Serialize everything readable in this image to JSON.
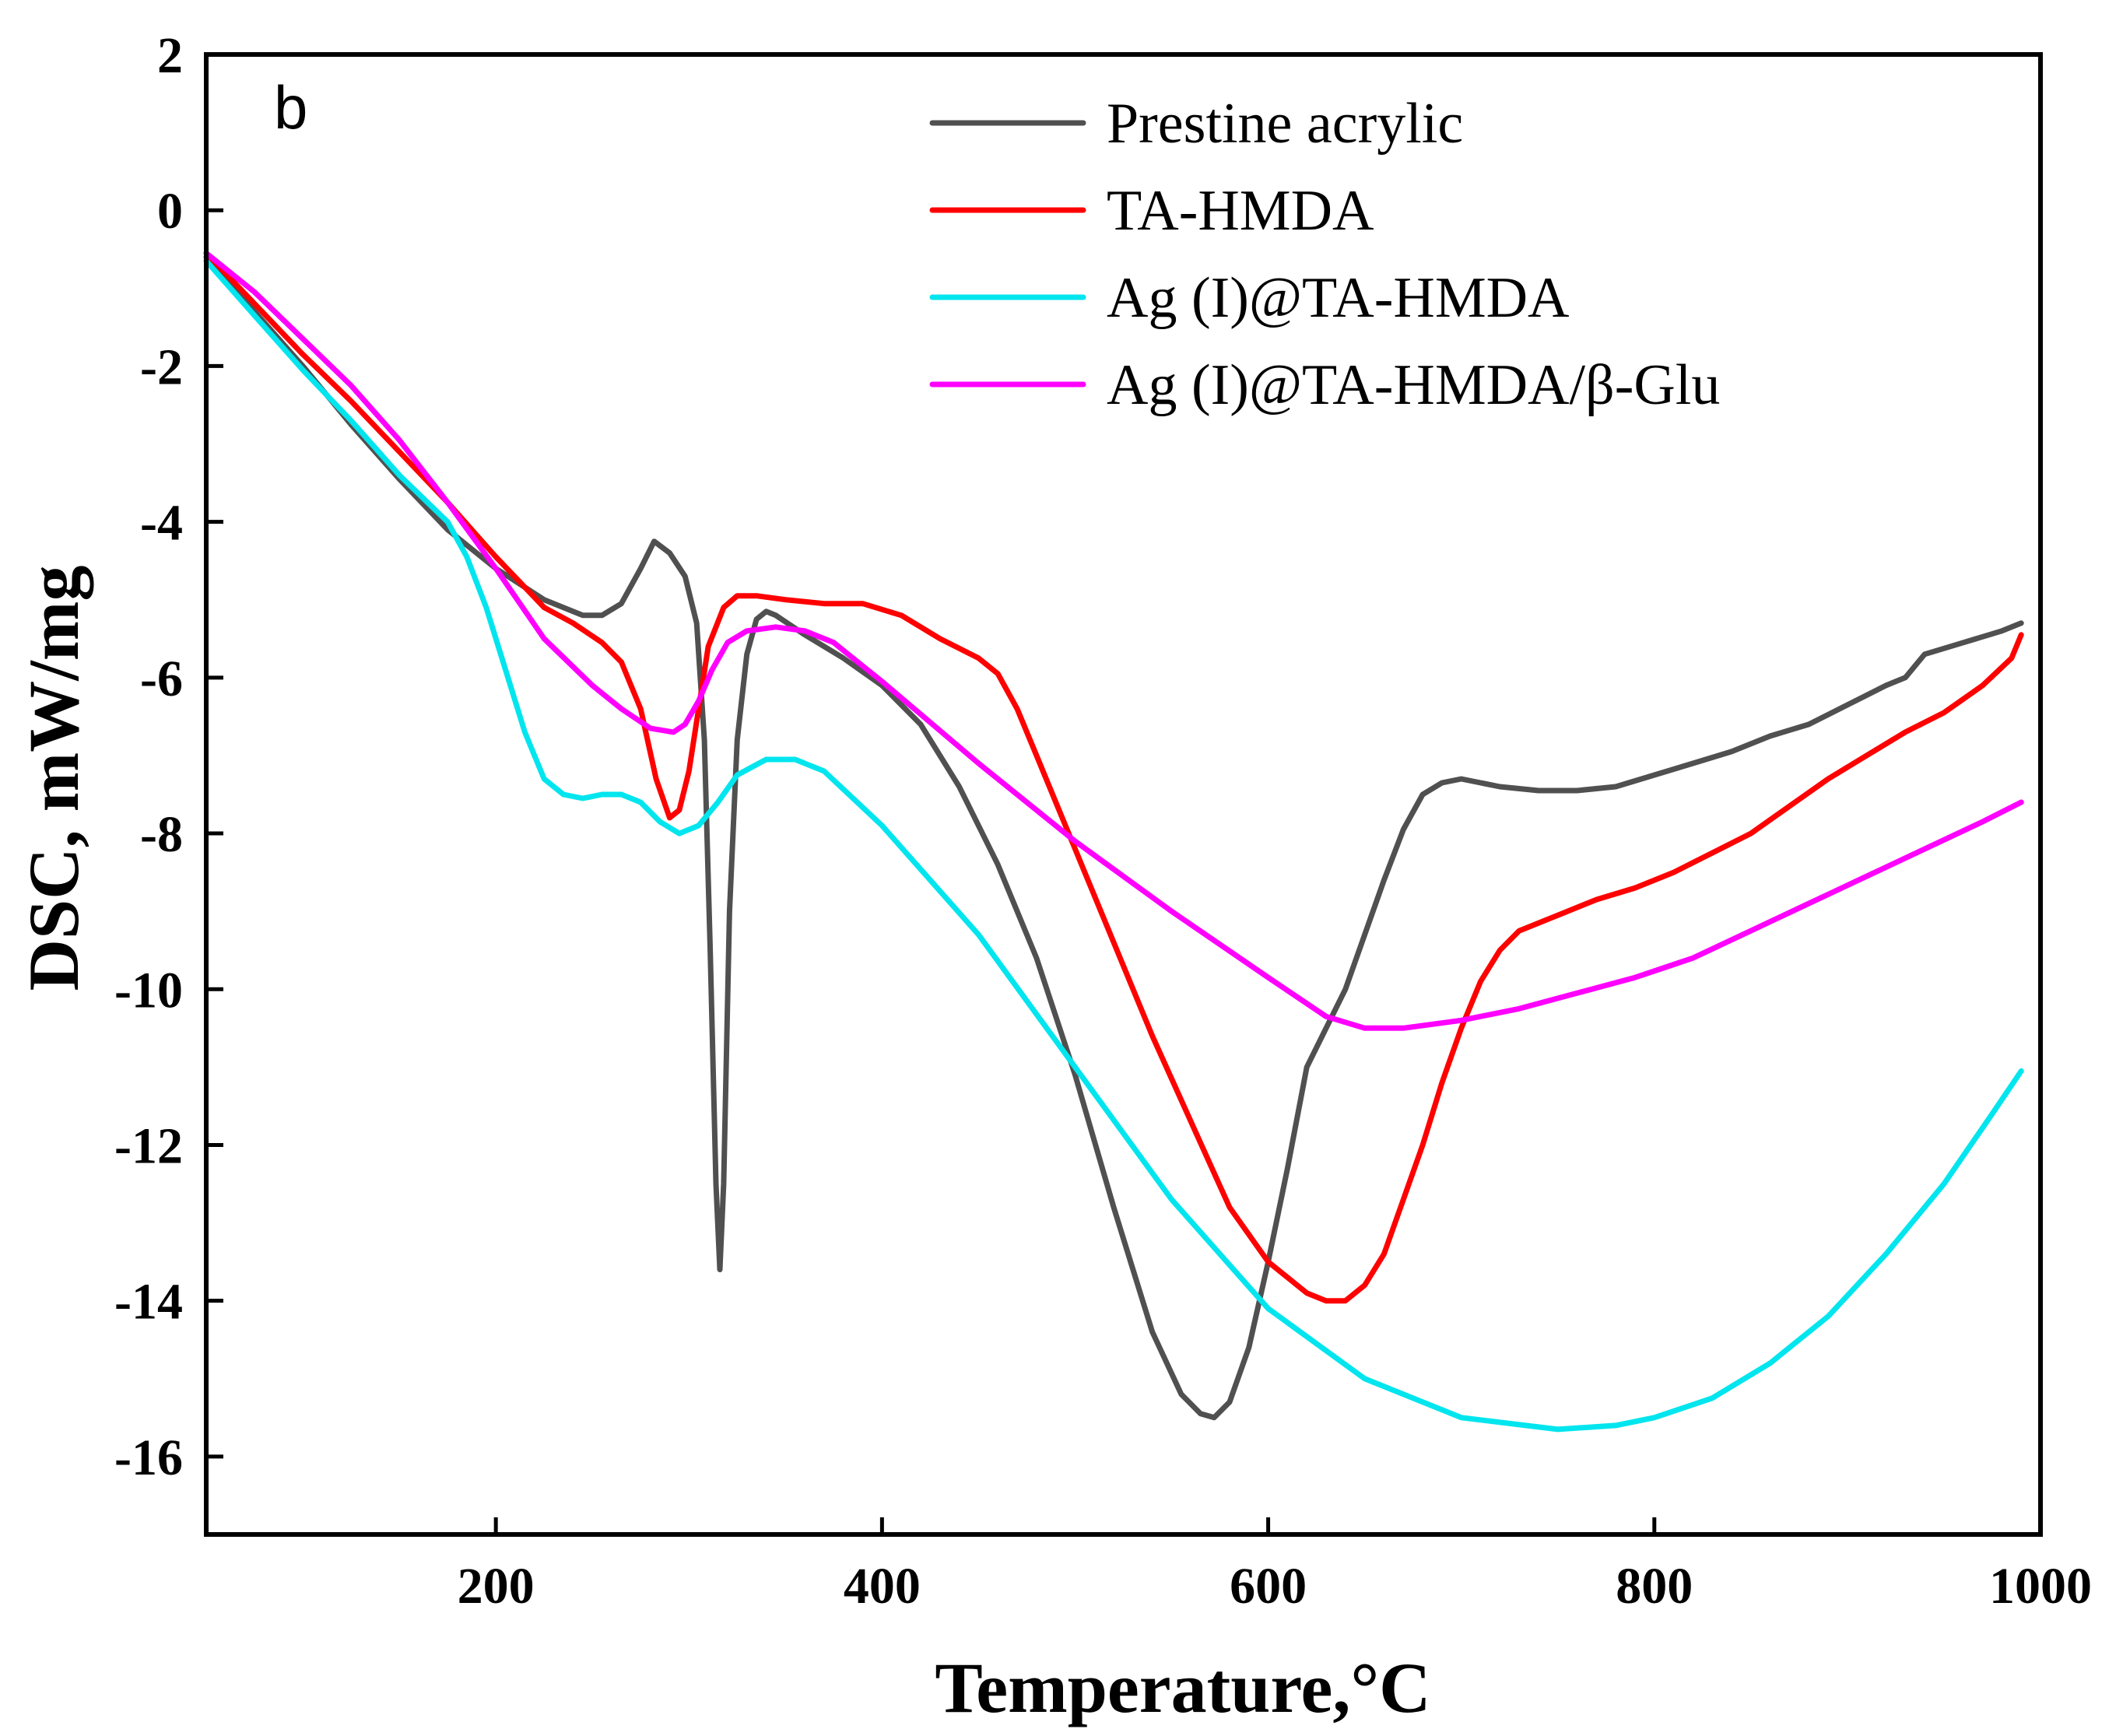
{
  "chart_data": {
    "type": "line",
    "panel_label": "b",
    "xlabel": "Temperature,°C",
    "ylabel": "DSC, mW/mg",
    "xlim": [
      50,
      1000
    ],
    "ylim": [
      -17,
      2
    ],
    "xticks": [
      200,
      400,
      600,
      800,
      1000
    ],
    "yticks": [
      2,
      0,
      -2,
      -4,
      -6,
      -8,
      -10,
      -12,
      -14,
      -16
    ],
    "legend_position": "top-right",
    "series": [
      {
        "name": "Prestine acrylic",
        "color": "#505050",
        "x": [
          50,
          75,
          100,
          125,
          150,
          175,
          200,
          225,
          245,
          255,
          265,
          275,
          282,
          290,
          298,
          304,
          308,
          311,
          314,
          316,
          318,
          321,
          325,
          330,
          335,
          340,
          345,
          360,
          380,
          400,
          420,
          440,
          460,
          480,
          500,
          520,
          540,
          555,
          565,
          572,
          580,
          590,
          600,
          610,
          620,
          630,
          640,
          650,
          660,
          670,
          680,
          690,
          700,
          710,
          720,
          740,
          760,
          780,
          800,
          820,
          840,
          860,
          880,
          900,
          920,
          930,
          935,
          940,
          960,
          980,
          990
        ],
        "y": [
          -0.6,
          -1.3,
          -2.0,
          -2.75,
          -3.45,
          -4.1,
          -4.6,
          -5.0,
          -5.2,
          -5.2,
          -5.05,
          -4.6,
          -4.25,
          -4.4,
          -4.7,
          -5.3,
          -6.8,
          -9.5,
          -12.5,
          -13.6,
          -12.5,
          -9.0,
          -6.8,
          -5.7,
          -5.25,
          -5.15,
          -5.2,
          -5.45,
          -5.75,
          -6.1,
          -6.6,
          -7.4,
          -8.4,
          -9.6,
          -11.1,
          -12.8,
          -14.4,
          -15.2,
          -15.45,
          -15.5,
          -15.3,
          -14.6,
          -13.5,
          -12.3,
          -11.0,
          -10.5,
          -10.0,
          -9.3,
          -8.6,
          -7.95,
          -7.5,
          -7.35,
          -7.3,
          -7.35,
          -7.4,
          -7.45,
          -7.45,
          -7.4,
          -7.25,
          -7.1,
          -6.95,
          -6.75,
          -6.6,
          -6.35,
          -6.1,
          -6.0,
          -5.85,
          -5.7,
          -5.55,
          -5.4,
          -5.3
        ]
      },
      {
        "name": "TA-HMDA",
        "color": "#ff0000",
        "x": [
          50,
          75,
          100,
          125,
          150,
          175,
          200,
          225,
          240,
          255,
          265,
          275,
          283,
          290,
          295,
          300,
          305,
          310,
          318,
          325,
          335,
          350,
          370,
          390,
          410,
          430,
          450,
          460,
          470,
          480,
          490,
          500,
          520,
          540,
          560,
          580,
          600,
          620,
          630,
          640,
          650,
          660,
          670,
          680,
          690,
          700,
          710,
          720,
          730,
          750,
          770,
          790,
          810,
          830,
          850,
          870,
          890,
          910,
          930,
          950,
          970,
          985,
          990
        ],
        "y": [
          -0.55,
          -1.2,
          -1.85,
          -2.45,
          -3.1,
          -3.75,
          -4.45,
          -5.1,
          -5.3,
          -5.55,
          -5.8,
          -6.4,
          -7.3,
          -7.8,
          -7.7,
          -7.2,
          -6.4,
          -5.6,
          -5.1,
          -4.95,
          -4.95,
          -5.0,
          -5.05,
          -5.05,
          -5.2,
          -5.5,
          -5.75,
          -5.95,
          -6.4,
          -7.0,
          -7.6,
          -8.2,
          -9.4,
          -10.6,
          -11.7,
          -12.8,
          -13.5,
          -13.9,
          -14.0,
          -14.0,
          -13.8,
          -13.4,
          -12.7,
          -12.0,
          -11.2,
          -10.5,
          -9.9,
          -9.5,
          -9.25,
          -9.05,
          -8.85,
          -8.7,
          -8.5,
          -8.25,
          -8.0,
          -7.65,
          -7.3,
          -7.0,
          -6.7,
          -6.45,
          -6.1,
          -5.75,
          -5.45
        ]
      },
      {
        "name": "Ag (I)@TA-HMDA",
        "color": "#00e5ee",
        "x": [
          50,
          75,
          100,
          125,
          150,
          175,
          185,
          195,
          205,
          215,
          225,
          235,
          245,
          255,
          265,
          275,
          285,
          295,
          305,
          315,
          325,
          340,
          355,
          370,
          400,
          450,
          500,
          550,
          600,
          650,
          700,
          750,
          780,
          800,
          830,
          860,
          890,
          920,
          950,
          975,
          990
        ],
        "y": [
          -0.65,
          -1.35,
          -2.05,
          -2.7,
          -3.4,
          -4.0,
          -4.45,
          -5.1,
          -5.9,
          -6.7,
          -7.3,
          -7.5,
          -7.55,
          -7.5,
          -7.5,
          -7.6,
          -7.85,
          -8.0,
          -7.9,
          -7.6,
          -7.25,
          -7.05,
          -7.05,
          -7.2,
          -7.9,
          -9.3,
          -11.0,
          -12.7,
          -14.1,
          -15.0,
          -15.5,
          -15.65,
          -15.6,
          -15.5,
          -15.25,
          -14.8,
          -14.2,
          -13.4,
          -12.5,
          -11.6,
          -11.05
        ]
      },
      {
        "name": "Ag (I)@TA-HMDA/β-Glu",
        "color": "#ff00ff",
        "x": [
          50,
          75,
          100,
          125,
          150,
          175,
          200,
          225,
          250,
          265,
          280,
          292,
          298,
          305,
          312,
          320,
          330,
          345,
          360,
          375,
          400,
          450,
          500,
          550,
          600,
          630,
          650,
          670,
          700,
          730,
          760,
          790,
          820,
          850,
          880,
          910,
          940,
          970,
          990
        ],
        "y": [
          -0.55,
          -1.05,
          -1.65,
          -2.25,
          -2.95,
          -3.75,
          -4.6,
          -5.5,
          -6.1,
          -6.4,
          -6.65,
          -6.7,
          -6.6,
          -6.3,
          -5.9,
          -5.55,
          -5.4,
          -5.35,
          -5.4,
          -5.55,
          -6.05,
          -7.1,
          -8.1,
          -9.0,
          -9.85,
          -10.35,
          -10.5,
          -10.5,
          -10.4,
          -10.25,
          -10.05,
          -9.85,
          -9.6,
          -9.25,
          -8.9,
          -8.55,
          -8.2,
          -7.85,
          -7.6
        ]
      }
    ]
  }
}
